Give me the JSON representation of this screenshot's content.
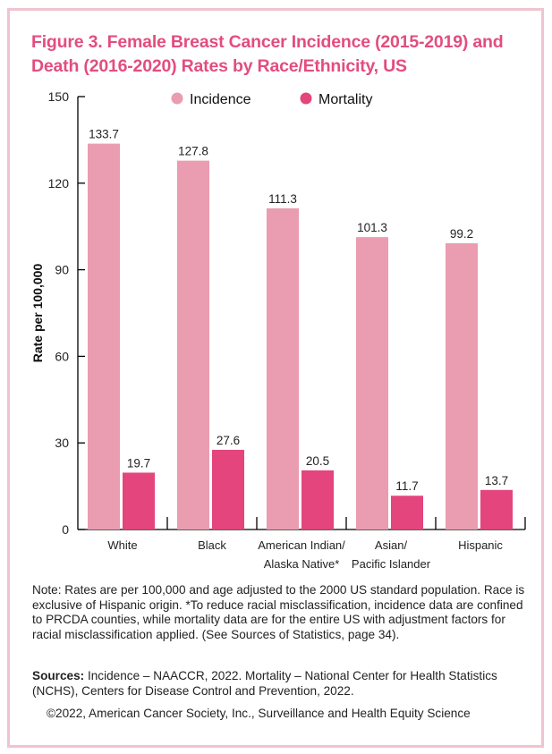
{
  "chart_data": {
    "type": "bar",
    "title": "Figure 3. Female Breast Cancer Incidence (2015-2019) and Death (2016-2020) Rates by Race/Ethnicity, US",
    "xlabel": "",
    "ylabel": "Rate per 100,000",
    "ylim": [
      0,
      150
    ],
    "yticks": [
      0,
      30,
      60,
      90,
      120,
      150
    ],
    "categories": [
      [
        "White"
      ],
      [
        "Black"
      ],
      [
        "American Indian/",
        "Alaska Native*"
      ],
      [
        "Asian/",
        "Pacific Islander"
      ],
      [
        "Hispanic"
      ]
    ],
    "series": [
      {
        "name": "Incidence",
        "color": "#ea9cb0",
        "values": [
          133.7,
          127.8,
          111.3,
          101.3,
          99.2
        ]
      },
      {
        "name": "Mortality",
        "color": "#e3457c",
        "values": [
          19.7,
          27.6,
          20.5,
          11.7,
          13.7
        ]
      }
    ],
    "legend_position": "top"
  },
  "notes": {
    "note": "Note: Rates are per 100,000 and age adjusted to the 2000 US standard population. Race is exclusive of Hispanic origin. *To reduce racial misclassification, incidence data are confined to PRCDA counties, while mortality data are for the entire US with adjustment factors for racial misclassification applied. (See Sources of Statistics, page 34).",
    "sources_label": "Sources:",
    "sources": " Incidence – NAACCR, 2022. Mortality – National Center for Health Statistics (NCHS), Centers for Disease Control and Prevention, 2022.",
    "copyright": "©2022, American Cancer Society, Inc., Surveillance and Health Equity Science"
  }
}
